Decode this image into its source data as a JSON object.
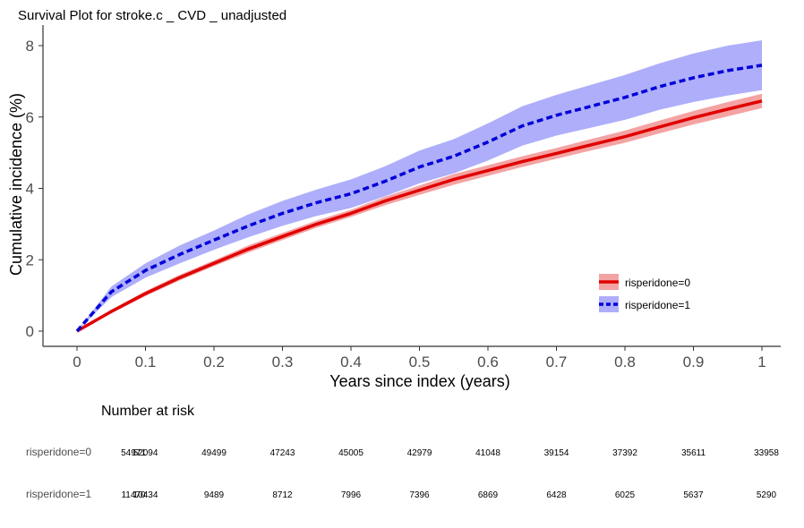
{
  "chart_data": {
    "type": "line",
    "title": "Survival Plot for stroke.c _ CVD _ unadjusted",
    "xlabel": "Years since index (years)",
    "ylabel": "Cumulative incidence (%)",
    "xlim": [
      0,
      1
    ],
    "ylim": [
      0,
      8
    ],
    "x_ticks": [
      "0",
      "0.1",
      "0.2",
      "0.3",
      "0.4",
      "0.5",
      "0.6",
      "0.7",
      "0.8",
      "0.9",
      "1"
    ],
    "y_ticks": [
      "0",
      "2",
      "4",
      "6",
      "8"
    ],
    "grid": false,
    "legend_position": "bottom-right",
    "series": [
      {
        "name": "risperidone=0",
        "color": "#e00000",
        "band_color": "#f4a3a3",
        "line_style": "solid",
        "x": [
          0,
          0.05,
          0.1,
          0.15,
          0.2,
          0.25,
          0.3,
          0.35,
          0.4,
          0.45,
          0.5,
          0.55,
          0.6,
          0.65,
          0.7,
          0.75,
          0.8,
          0.85,
          0.9,
          0.95,
          1.0
        ],
        "y": [
          0,
          0.55,
          1.05,
          1.5,
          1.9,
          2.3,
          2.65,
          3.0,
          3.3,
          3.65,
          3.95,
          4.25,
          4.5,
          4.75,
          4.98,
          5.22,
          5.45,
          5.72,
          5.98,
          6.22,
          6.45
        ],
        "lower": [
          0,
          0.5,
          0.98,
          1.42,
          1.82,
          2.2,
          2.55,
          2.9,
          3.2,
          3.53,
          3.82,
          4.1,
          4.35,
          4.6,
          4.83,
          5.06,
          5.28,
          5.54,
          5.79,
          6.02,
          6.25
        ],
        "upper": [
          0,
          0.6,
          1.12,
          1.58,
          1.98,
          2.4,
          2.75,
          3.1,
          3.4,
          3.77,
          4.08,
          4.4,
          4.65,
          4.9,
          5.13,
          5.38,
          5.62,
          5.9,
          6.17,
          6.42,
          6.65
        ]
      },
      {
        "name": "risperidone=1",
        "color": "#0000d8",
        "band_color": "#aeaefa",
        "line_style": "dashed",
        "x": [
          0,
          0.05,
          0.1,
          0.15,
          0.2,
          0.25,
          0.3,
          0.35,
          0.4,
          0.45,
          0.5,
          0.55,
          0.6,
          0.65,
          0.7,
          0.75,
          0.8,
          0.85,
          0.9,
          0.95,
          1.0
        ],
        "y": [
          0,
          1.1,
          1.7,
          2.15,
          2.55,
          2.95,
          3.3,
          3.6,
          3.85,
          4.2,
          4.6,
          4.9,
          5.3,
          5.75,
          6.05,
          6.3,
          6.55,
          6.85,
          7.1,
          7.3,
          7.45
        ],
        "lower": [
          0,
          0.95,
          1.5,
          1.9,
          2.28,
          2.63,
          2.95,
          3.23,
          3.45,
          3.78,
          4.14,
          4.42,
          4.78,
          5.2,
          5.48,
          5.7,
          5.92,
          6.2,
          6.42,
          6.6,
          6.75
        ],
        "upper": [
          0,
          1.25,
          1.9,
          2.4,
          2.82,
          3.27,
          3.65,
          3.97,
          4.25,
          4.62,
          5.06,
          5.38,
          5.82,
          6.3,
          6.62,
          6.9,
          7.18,
          7.5,
          7.78,
          8.0,
          8.15
        ]
      }
    ],
    "risk_table": {
      "title": "Number at risk",
      "rows": [
        {
          "label": "risperidone=0",
          "values": [
            "54971",
            "52094",
            "49499",
            "47243",
            "45005",
            "42979",
            "41048",
            "39154",
            "37392",
            "35611",
            "33958"
          ]
        },
        {
          "label": "risperidone=1",
          "values": [
            "11470",
            "10434",
            "9489",
            "8712",
            "7996",
            "7396",
            "6869",
            "6428",
            "6025",
            "5637",
            "5290"
          ]
        }
      ]
    }
  }
}
